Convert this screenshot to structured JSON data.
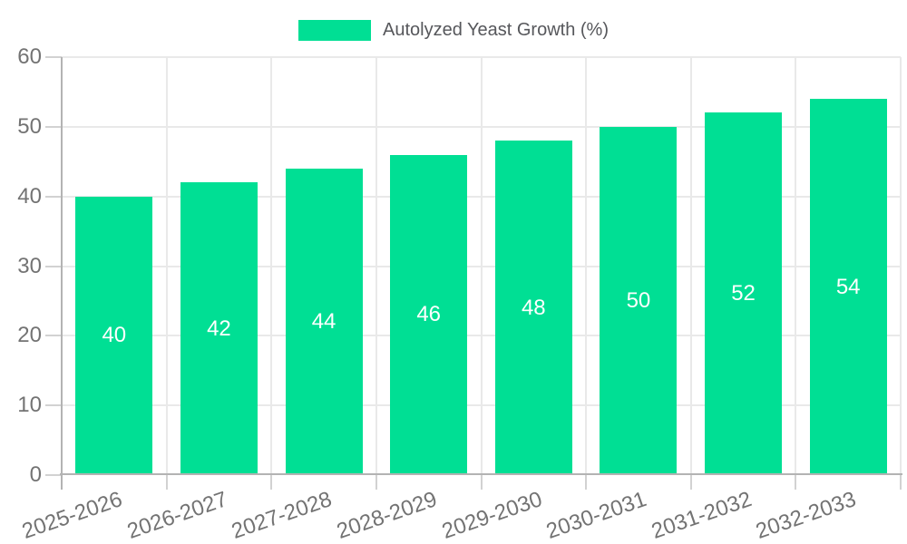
{
  "chart_data": {
    "type": "bar",
    "title": "",
    "legend": {
      "position": "top",
      "entries": [
        "Autolyzed Yeast Growth (%)"
      ]
    },
    "categories": [
      "2025-2026",
      "2026-2027",
      "2027-2028",
      "2028-2029",
      "2029-2030",
      "2030-2031",
      "2031-2032",
      "2032-2033"
    ],
    "series": [
      {
        "name": "Autolyzed Yeast Growth (%)",
        "values": [
          40,
          42,
          44,
          46,
          48,
          50,
          52,
          54
        ]
      }
    ],
    "xlabel": "",
    "ylabel": "",
    "ylim": [
      0,
      60
    ],
    "yticks": [
      0,
      10,
      20,
      30,
      40,
      50,
      60
    ],
    "grid": true,
    "value_labels_shown": true,
    "colors": {
      "bar": "#00df94",
      "bar_label": "#ffffff",
      "grid": "#e9e9e9",
      "axis": "#b3b3b3",
      "tick": "#d2d2d2",
      "tick_label": "#737373",
      "legend_text": "#56575b",
      "background": "#ffffff"
    }
  }
}
